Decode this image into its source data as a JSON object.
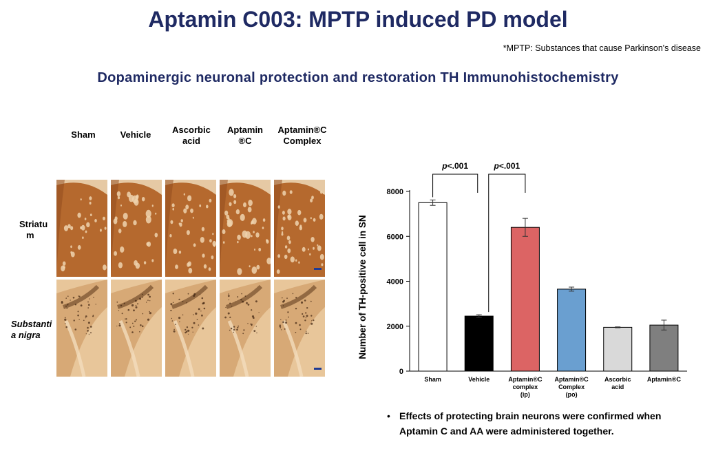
{
  "header": {
    "title": "Aptamin C003: MPTP induced PD model",
    "footnote": "*MPTP: Substances that cause Parkinson's disease",
    "subtitle": "Dopaminergic neuronal protection and restoration TH Immunohistochemistry"
  },
  "histology": {
    "columns": [
      [
        "Sham"
      ],
      [
        "Vehicle"
      ],
      [
        "Ascorbic",
        "acid"
      ],
      [
        "Aptamin",
        "®C"
      ],
      [
        "Aptamin®C",
        "Complex"
      ]
    ],
    "rows": [
      {
        "lines": [
          "Striatu",
          "m"
        ],
        "italic": false
      },
      {
        "lines": [
          "Substanti",
          "a nigra"
        ],
        "italic": true
      }
    ],
    "colors": {
      "striatum": "#b5692e",
      "striatum_dark": "#8f4a1c",
      "nigra_bg": "#e8c69a",
      "nigra_tissue": "#c9915a",
      "scale_bar": "#1f3a93"
    }
  },
  "chart_data": {
    "type": "bar",
    "categories": [
      [
        "Sham"
      ],
      [
        "Vehicle"
      ],
      [
        "Aptamin®C",
        "complex",
        "(ip)"
      ],
      [
        "Aptamin®C",
        "Complex",
        "(po)"
      ],
      [
        "Ascorbic",
        "acid"
      ],
      [
        "Aptamin®C"
      ]
    ],
    "values": [
      7500,
      2450,
      6400,
      3650,
      1950,
      2050
    ],
    "errors": [
      120,
      60,
      400,
      90,
      20,
      220
    ],
    "colors": [
      "#ffffff",
      "#000000",
      "#dc6464",
      "#6a9fd0",
      "#d9d9d9",
      "#7f7f7f"
    ],
    "ylabel": "Number of TH-positive cell in SN",
    "ylim": [
      0,
      8000
    ],
    "yticks": [
      0,
      2000,
      4000,
      6000,
      8000
    ],
    "grid": false,
    "annotations": [
      {
        "from": 0,
        "to": 1,
        "text_p": "p",
        "text": "<.001"
      },
      {
        "from": 1,
        "to": 2,
        "text_p": "p",
        "text": "<.001"
      }
    ]
  },
  "notes": [
    {
      "bullet": "•",
      "lines": [
        "Effects of protecting brain neurons were confirmed when",
        "Aptamin  C and AA  were administered together."
      ]
    }
  ]
}
